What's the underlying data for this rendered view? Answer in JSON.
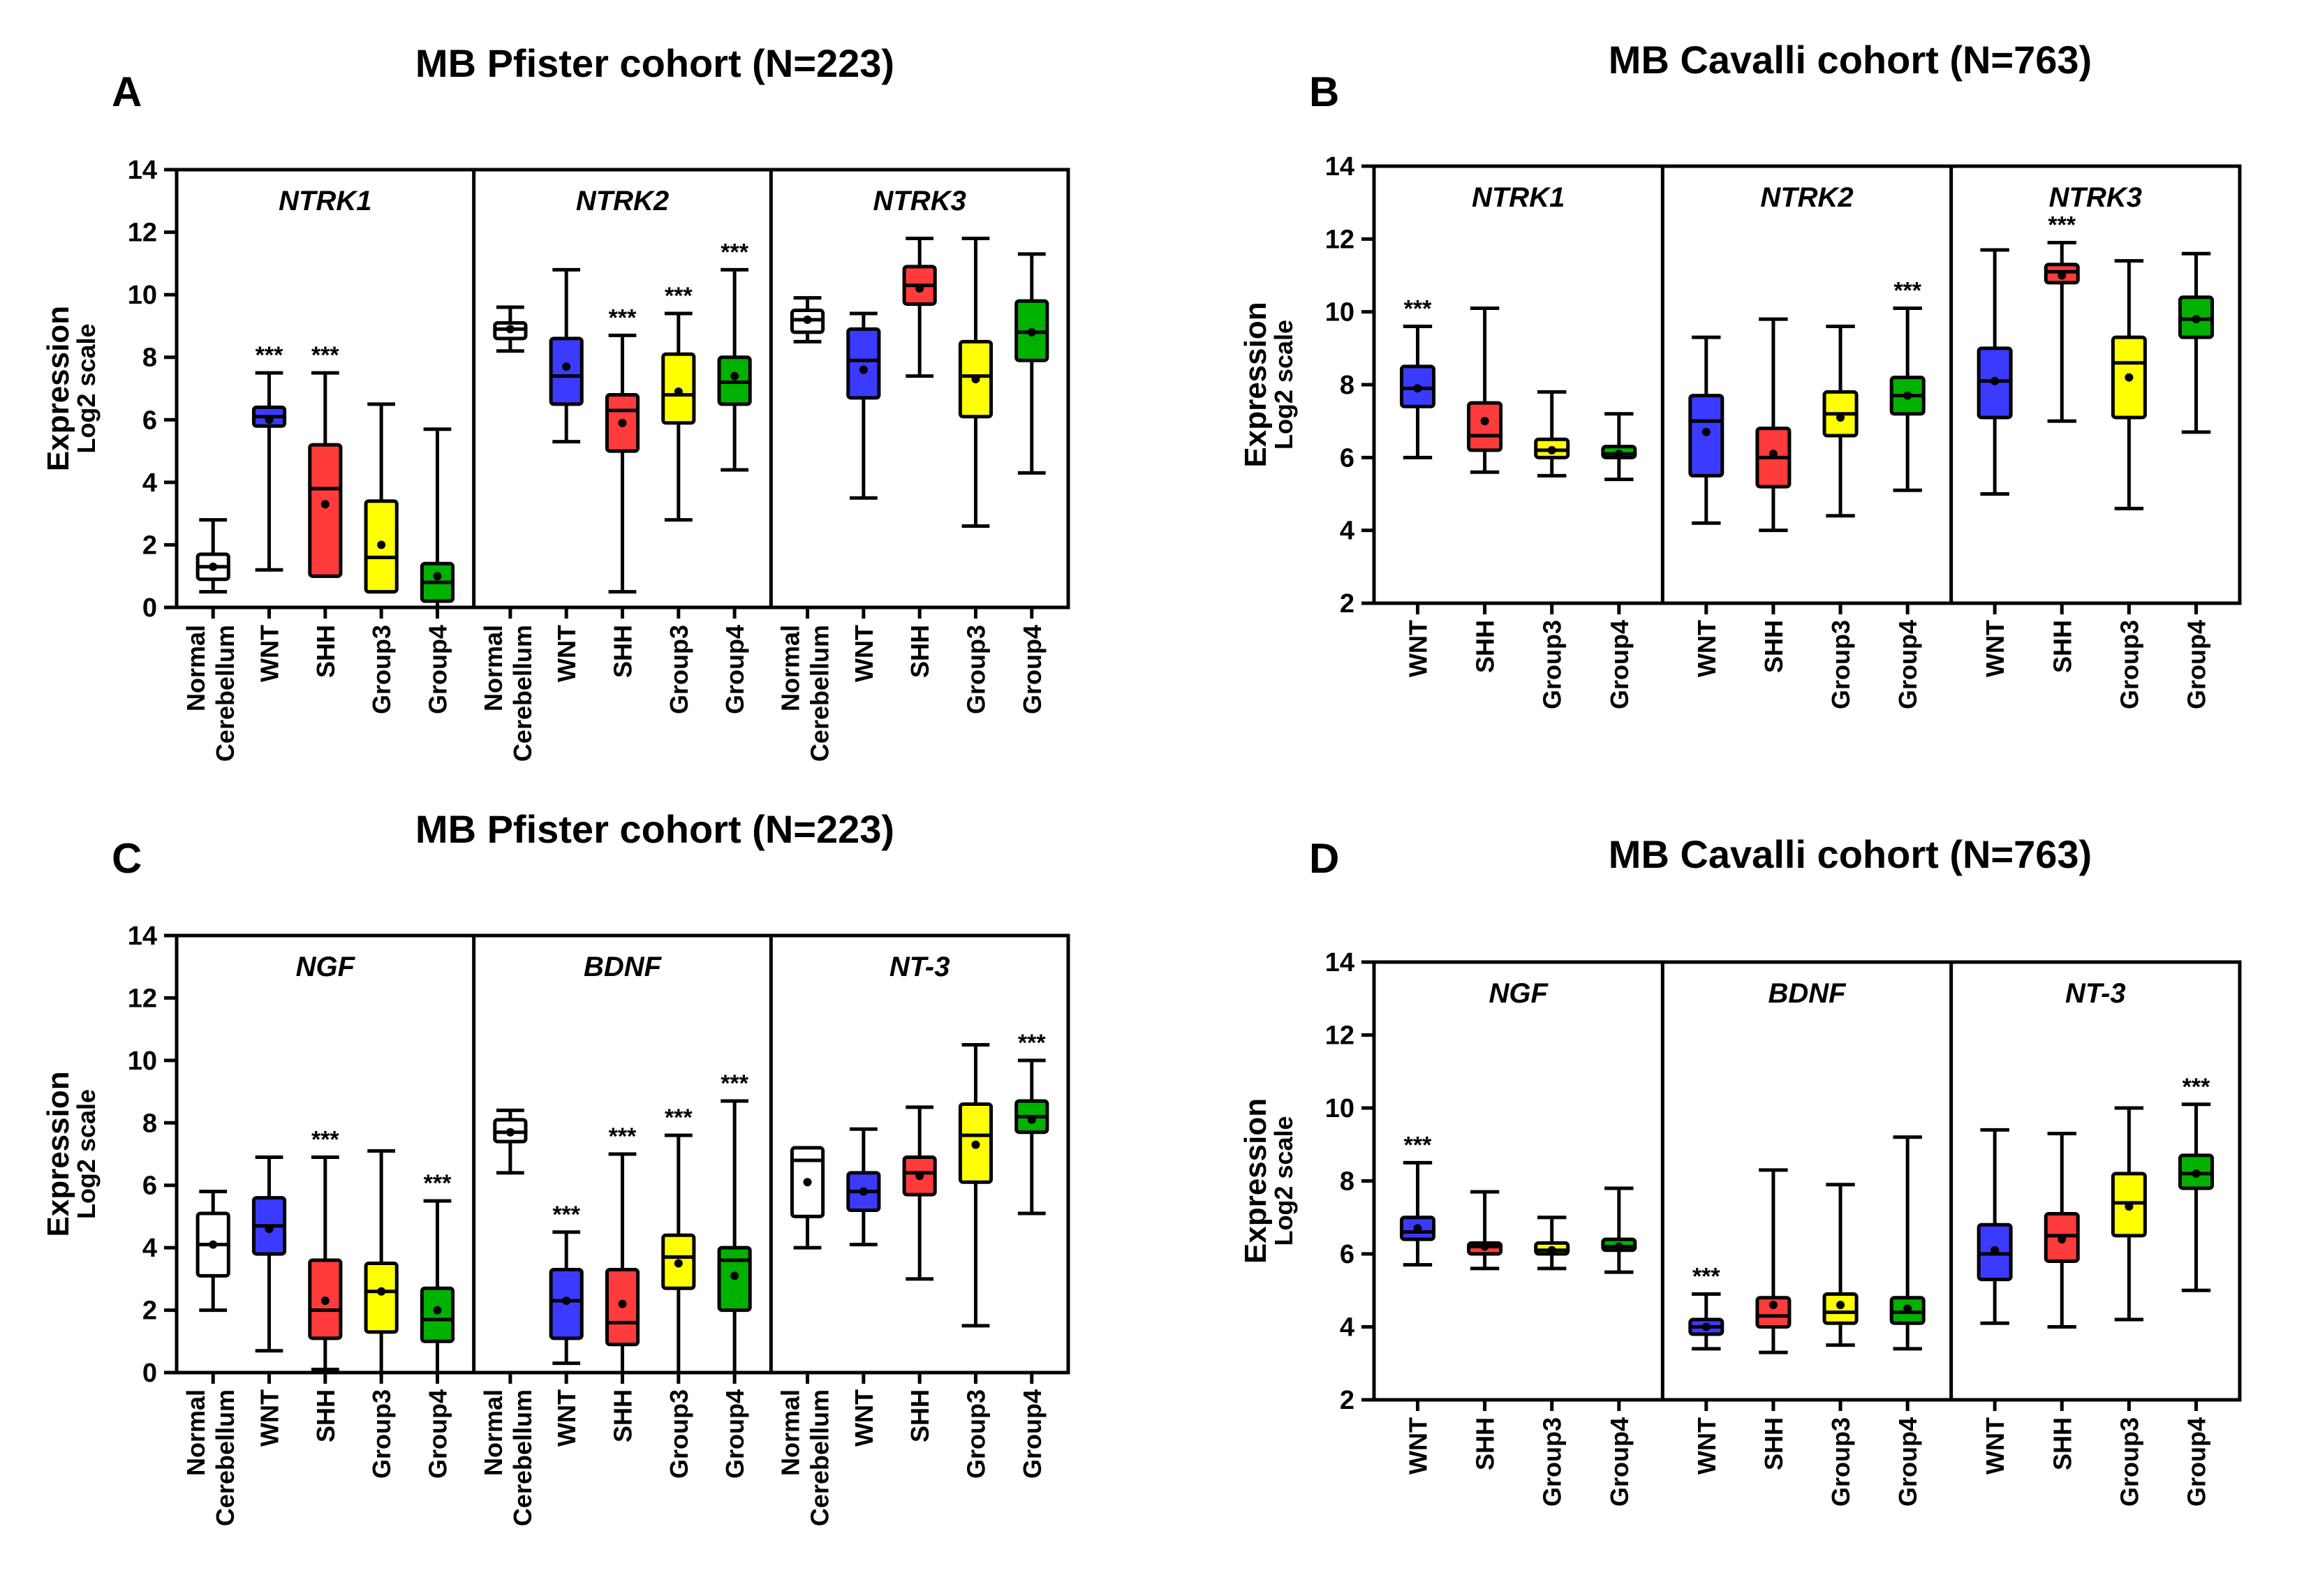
{
  "colors": {
    "Normal Cerebellum": "#ffffff",
    "WNT": "#3b3bff",
    "SHH": "#ff3b3b",
    "Group3": "#ffff00",
    "Group4": "#00b200"
  },
  "chart_data": [
    {
      "panel": "A",
      "type": "boxplot",
      "title": "MB Pfister cohort (N=223)",
      "ylabel": "Expression",
      "ylabel2": "Log2 scale",
      "ylim": [
        0,
        14
      ],
      "yticks": [
        "0",
        "2",
        "4",
        "6",
        "8",
        "10",
        "12",
        "14"
      ],
      "groups": [
        {
          "gene": "NTRK1",
          "boxes": [
            {
              "category": "Normal Cerebellum",
              "min": 0.5,
              "q1": 0.9,
              "median": 1.3,
              "q3": 1.7,
              "max": 2.8,
              "mean": 1.3,
              "sig": ""
            },
            {
              "category": "WNT",
              "min": 1.2,
              "q1": 5.8,
              "median": 6.1,
              "q3": 6.4,
              "max": 7.5,
              "mean": 6.0,
              "sig": "***"
            },
            {
              "category": "SHH",
              "min": 1.0,
              "q1": 1.0,
              "median": 3.8,
              "q3": 5.2,
              "max": 7.5,
              "mean": 3.3,
              "sig": "***"
            },
            {
              "category": "Group3",
              "min": 0.5,
              "q1": 0.5,
              "median": 1.6,
              "q3": 3.4,
              "max": 6.5,
              "mean": 2.0,
              "sig": ""
            },
            {
              "category": "Group4",
              "min": 0.0,
              "q1": 0.2,
              "median": 0.8,
              "q3": 1.4,
              "max": 5.7,
              "mean": 1.0,
              "sig": ""
            }
          ]
        },
        {
          "gene": "NTRK2",
          "boxes": [
            {
              "category": "Normal Cerebellum",
              "min": 8.2,
              "q1": 8.6,
              "median": 8.9,
              "q3": 9.1,
              "max": 9.6,
              "mean": 8.9,
              "sig": ""
            },
            {
              "category": "WNT",
              "min": 5.3,
              "q1": 6.5,
              "median": 7.4,
              "q3": 8.6,
              "max": 10.8,
              "mean": 7.7,
              "sig": ""
            },
            {
              "category": "SHH",
              "min": 0.5,
              "q1": 5.0,
              "median": 6.3,
              "q3": 6.8,
              "max": 8.7,
              "mean": 5.9,
              "sig": "***"
            },
            {
              "category": "Group3",
              "min": 2.8,
              "q1": 5.9,
              "median": 6.8,
              "q3": 8.1,
              "max": 9.4,
              "mean": 6.9,
              "sig": "***"
            },
            {
              "category": "Group4",
              "min": 4.4,
              "q1": 6.5,
              "median": 7.2,
              "q3": 8.0,
              "max": 10.8,
              "mean": 7.4,
              "sig": "***"
            }
          ]
        },
        {
          "gene": "NTRK3",
          "boxes": [
            {
              "category": "Normal Cerebellum",
              "min": 8.5,
              "q1": 8.8,
              "median": 9.2,
              "q3": 9.5,
              "max": 9.9,
              "mean": 9.2,
              "sig": ""
            },
            {
              "category": "WNT",
              "min": 3.5,
              "q1": 6.7,
              "median": 7.9,
              "q3": 8.9,
              "max": 9.4,
              "mean": 7.6,
              "sig": ""
            },
            {
              "category": "SHH",
              "min": 7.4,
              "q1": 9.7,
              "median": 10.3,
              "q3": 10.9,
              "max": 11.8,
              "mean": 10.2,
              "sig": ""
            },
            {
              "category": "Group3",
              "min": 2.6,
              "q1": 6.1,
              "median": 7.4,
              "q3": 8.5,
              "max": 11.8,
              "mean": 7.3,
              "sig": ""
            },
            {
              "category": "Group4",
              "min": 4.3,
              "q1": 7.9,
              "median": 8.8,
              "q3": 9.8,
              "max": 11.3,
              "mean": 8.8,
              "sig": ""
            }
          ]
        }
      ]
    },
    {
      "panel": "B",
      "type": "boxplot",
      "title": "MB Cavalli cohort (N=763)",
      "ylabel": "Expression",
      "ylabel2": "Log2 scale",
      "ylim": [
        2,
        14
      ],
      "yticks": [
        "2",
        "4",
        "6",
        "8",
        "10",
        "12",
        "14"
      ],
      "groups": [
        {
          "gene": "NTRK1",
          "boxes": [
            {
              "category": "WNT",
              "min": 6.0,
              "q1": 7.4,
              "median": 7.9,
              "q3": 8.5,
              "max": 9.6,
              "mean": 7.9,
              "sig": "***"
            },
            {
              "category": "SHH",
              "min": 5.6,
              "q1": 6.2,
              "median": 6.6,
              "q3": 7.5,
              "max": 10.1,
              "mean": 7.0,
              "sig": ""
            },
            {
              "category": "Group3",
              "min": 5.5,
              "q1": 6.0,
              "median": 6.2,
              "q3": 6.5,
              "max": 7.8,
              "mean": 6.2,
              "sig": ""
            },
            {
              "category": "Group4",
              "min": 5.4,
              "q1": 6.0,
              "median": 6.1,
              "q3": 6.3,
              "max": 7.2,
              "mean": 6.1,
              "sig": ""
            }
          ]
        },
        {
          "gene": "NTRK2",
          "boxes": [
            {
              "category": "WNT",
              "min": 4.2,
              "q1": 5.5,
              "median": 7.0,
              "q3": 7.7,
              "max": 9.3,
              "mean": 6.7,
              "sig": ""
            },
            {
              "category": "SHH",
              "min": 4.0,
              "q1": 5.2,
              "median": 6.0,
              "q3": 6.8,
              "max": 9.8,
              "mean": 6.1,
              "sig": ""
            },
            {
              "category": "Group3",
              "min": 4.4,
              "q1": 6.6,
              "median": 7.2,
              "q3": 7.8,
              "max": 9.6,
              "mean": 7.1,
              "sig": ""
            },
            {
              "category": "Group4",
              "min": 5.1,
              "q1": 7.2,
              "median": 7.7,
              "q3": 8.2,
              "max": 10.1,
              "mean": 7.7,
              "sig": "***"
            }
          ]
        },
        {
          "gene": "NTRK3",
          "boxes": [
            {
              "category": "WNT",
              "min": 5.0,
              "q1": 7.1,
              "median": 8.1,
              "q3": 9.0,
              "max": 11.7,
              "mean": 8.1,
              "sig": ""
            },
            {
              "category": "SHH",
              "min": 7.0,
              "q1": 10.8,
              "median": 11.1,
              "q3": 11.3,
              "max": 11.9,
              "mean": 11.0,
              "sig": "***"
            },
            {
              "category": "Group3",
              "min": 4.6,
              "q1": 7.1,
              "median": 8.6,
              "q3": 9.3,
              "max": 11.4,
              "mean": 8.2,
              "sig": ""
            },
            {
              "category": "Group4",
              "min": 6.7,
              "q1": 9.3,
              "median": 9.8,
              "q3": 10.4,
              "max": 11.6,
              "mean": 9.8,
              "sig": ""
            }
          ]
        }
      ]
    },
    {
      "panel": "C",
      "type": "boxplot",
      "title": "MB Pfister cohort (N=223)",
      "ylabel": "Expression",
      "ylabel2": "Log2 scale",
      "ylim": [
        0,
        14
      ],
      "yticks": [
        "0",
        "2",
        "4",
        "6",
        "8",
        "10",
        "12",
        "14"
      ],
      "groups": [
        {
          "gene": "NGF",
          "boxes": [
            {
              "category": "Normal Cerebellum",
              "min": 2.0,
              "q1": 3.1,
              "median": 4.1,
              "q3": 5.1,
              "max": 5.8,
              "mean": 4.1,
              "sig": ""
            },
            {
              "category": "WNT",
              "min": 0.7,
              "q1": 3.8,
              "median": 4.7,
              "q3": 5.6,
              "max": 6.9,
              "mean": 4.6,
              "sig": ""
            },
            {
              "category": "SHH",
              "min": 0.1,
              "q1": 1.1,
              "median": 2.0,
              "q3": 3.6,
              "max": 6.9,
              "mean": 2.3,
              "sig": "***"
            },
            {
              "category": "Group3",
              "min": 0.0,
              "q1": 1.3,
              "median": 2.6,
              "q3": 3.5,
              "max": 7.1,
              "mean": 2.6,
              "sig": ""
            },
            {
              "category": "Group4",
              "min": 0.0,
              "q1": 1.0,
              "median": 1.7,
              "q3": 2.7,
              "max": 5.5,
              "mean": 2.0,
              "sig": "***"
            }
          ]
        },
        {
          "gene": "BDNF",
          "boxes": [
            {
              "category": "Normal Cerebellum",
              "min": 6.4,
              "q1": 7.4,
              "median": 7.7,
              "q3": 8.1,
              "max": 8.4,
              "mean": 7.7,
              "sig": ""
            },
            {
              "category": "WNT",
              "min": 0.3,
              "q1": 1.1,
              "median": 2.3,
              "q3": 3.3,
              "max": 4.5,
              "mean": 2.3,
              "sig": "***"
            },
            {
              "category": "SHH",
              "min": 0.0,
              "q1": 0.9,
              "median": 1.6,
              "q3": 3.3,
              "max": 7.0,
              "mean": 2.2,
              "sig": "***"
            },
            {
              "category": "Group3",
              "min": 0.0,
              "q1": 2.7,
              "median": 3.7,
              "q3": 4.4,
              "max": 7.6,
              "mean": 3.5,
              "sig": "***"
            },
            {
              "category": "Group4",
              "min": 0.0,
              "q1": 2.0,
              "median": 3.6,
              "q3": 4.0,
              "max": 8.7,
              "mean": 3.1,
              "sig": "***"
            }
          ]
        },
        {
          "gene": "NT-3",
          "boxes": [
            {
              "category": "Normal Cerebellum",
              "min": 4.0,
              "q1": 5.0,
              "median": 6.8,
              "q3": 7.2,
              "max": 7.2,
              "mean": 6.1,
              "sig": ""
            },
            {
              "category": "WNT",
              "min": 4.1,
              "q1": 5.2,
              "median": 5.8,
              "q3": 6.4,
              "max": 7.8,
              "mean": 5.8,
              "sig": ""
            },
            {
              "category": "SHH",
              "min": 3.0,
              "q1": 5.7,
              "median": 6.4,
              "q3": 6.9,
              "max": 8.5,
              "mean": 6.3,
              "sig": ""
            },
            {
              "category": "Group3",
              "min": 1.5,
              "q1": 6.1,
              "median": 7.6,
              "q3": 8.6,
              "max": 10.5,
              "mean": 7.3,
              "sig": ""
            },
            {
              "category": "Group4",
              "min": 5.1,
              "q1": 7.7,
              "median": 8.2,
              "q3": 8.7,
              "max": 10.0,
              "mean": 8.1,
              "sig": "***"
            }
          ]
        }
      ]
    },
    {
      "panel": "D",
      "type": "boxplot",
      "title": "MB Cavalli cohort (N=763)",
      "ylabel": "Expression",
      "ylabel2": "Log2 scale",
      "ylim": [
        2,
        14
      ],
      "yticks": [
        "2",
        "4",
        "6",
        "8",
        "10",
        "12",
        "14"
      ],
      "groups": [
        {
          "gene": "NGF",
          "boxes": [
            {
              "category": "WNT",
              "min": 5.7,
              "q1": 6.4,
              "median": 6.6,
              "q3": 7.0,
              "max": 8.5,
              "mean": 6.7,
              "sig": "***"
            },
            {
              "category": "SHH",
              "min": 5.6,
              "q1": 6.0,
              "median": 6.2,
              "q3": 6.3,
              "max": 7.7,
              "mean": 6.2,
              "sig": ""
            },
            {
              "category": "Group3",
              "min": 5.6,
              "q1": 6.0,
              "median": 6.1,
              "q3": 6.3,
              "max": 7.0,
              "mean": 6.1,
              "sig": ""
            },
            {
              "category": "Group4",
              "min": 5.5,
              "q1": 6.1,
              "median": 6.2,
              "q3": 6.4,
              "max": 7.8,
              "mean": 6.2,
              "sig": ""
            }
          ]
        },
        {
          "gene": "BDNF",
          "boxes": [
            {
              "category": "WNT",
              "min": 3.4,
              "q1": 3.8,
              "median": 4.0,
              "q3": 4.2,
              "max": 4.9,
              "mean": 4.0,
              "sig": "***"
            },
            {
              "category": "SHH",
              "min": 3.3,
              "q1": 4.0,
              "median": 4.3,
              "q3": 4.8,
              "max": 8.3,
              "mean": 4.6,
              "sig": ""
            },
            {
              "category": "Group3",
              "min": 3.5,
              "q1": 4.1,
              "median": 4.4,
              "q3": 4.9,
              "max": 7.9,
              "mean": 4.6,
              "sig": ""
            },
            {
              "category": "Group4",
              "min": 3.4,
              "q1": 4.1,
              "median": 4.4,
              "q3": 4.8,
              "max": 9.2,
              "mean": 4.5,
              "sig": ""
            }
          ]
        },
        {
          "gene": "NT-3",
          "boxes": [
            {
              "category": "WNT",
              "min": 4.1,
              "q1": 5.3,
              "median": 6.0,
              "q3": 6.8,
              "max": 9.4,
              "mean": 6.1,
              "sig": ""
            },
            {
              "category": "SHH",
              "min": 4.0,
              "q1": 5.8,
              "median": 6.5,
              "q3": 7.1,
              "max": 9.3,
              "mean": 6.4,
              "sig": ""
            },
            {
              "category": "Group3",
              "min": 4.2,
              "q1": 6.5,
              "median": 7.4,
              "q3": 8.2,
              "max": 10.0,
              "mean": 7.3,
              "sig": ""
            },
            {
              "category": "Group4",
              "min": 5.0,
              "q1": 7.8,
              "median": 8.2,
              "q3": 8.7,
              "max": 10.1,
              "mean": 8.2,
              "sig": "***"
            }
          ]
        }
      ]
    }
  ]
}
